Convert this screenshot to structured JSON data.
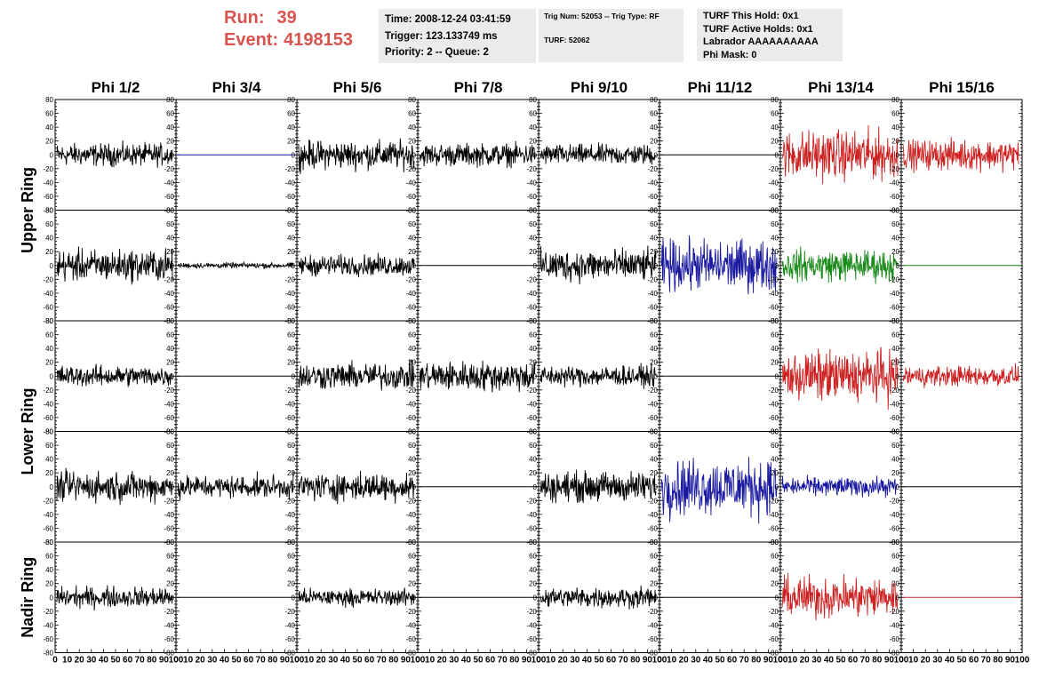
{
  "header": {
    "run_label": "Run:",
    "run_value": "39",
    "event_label": "Event:",
    "event_value": "4198153"
  },
  "info_pane_1": {
    "time": "Time: 2008-12-24 03:41:59",
    "trigger": "Trigger: 123.133749 ms",
    "priority": "Priority: 2 -- Queue: 2"
  },
  "info_pane_2": {
    "trig": "Trig Num: 52053 -- Trig Type: RF",
    "turf": "TURF: 52062"
  },
  "info_pane_3": {
    "this_hold": "TURF This Hold: 0x1",
    "active_holds": "TURF Active Holds: 0x1",
    "labrador": "Labrador AAAAAAAAAA",
    "phi_mask": "Phi Mask: 0"
  },
  "columns": [
    "Phi 1/2",
    "Phi 3/4",
    "Phi 5/6",
    "Phi 7/8",
    "Phi 9/10",
    "Phi 11/12",
    "Phi 13/14",
    "Phi 15/16"
  ],
  "ring_labels": [
    "Upper Ring",
    "Lower Ring",
    "Nadir Ring"
  ],
  "axis": {
    "y_ticks": [
      "80",
      "60",
      "40",
      "20",
      "0",
      "-20",
      "-40",
      "-60",
      "-80"
    ],
    "x_ticks": [
      "0",
      "10",
      "20",
      "30",
      "40",
      "50",
      "60",
      "70",
      "80",
      "90",
      "100"
    ],
    "ylim": [
      -80,
      80
    ],
    "xlim": [
      0,
      100
    ]
  },
  "colors": {
    "black": "#000000",
    "blue": "#1a1aa0",
    "red": "#cc2222",
    "green": "#1a8a1a",
    "header_red": "#d9534f",
    "pane_bg": "#ebebeb"
  },
  "panels": [
    [
      {
        "c": "black",
        "a": 12
      },
      {
        "c": "blue",
        "a": 0
      },
      {
        "c": "black",
        "a": 15
      },
      {
        "c": "black",
        "a": 12
      },
      {
        "c": "black",
        "a": 11
      },
      {
        "c": "black",
        "a": 0
      },
      {
        "c": "red",
        "a": 26
      },
      {
        "c": "red",
        "a": 16
      }
    ],
    [
      {
        "c": "black",
        "a": 17
      },
      {
        "c": "black",
        "a": 3
      },
      {
        "c": "black",
        "a": 11
      },
      {
        "c": "black",
        "a": 0
      },
      {
        "c": "black",
        "a": 17
      },
      {
        "c": "blue",
        "a": 27
      },
      {
        "c": "green",
        "a": 17
      },
      {
        "c": "green",
        "a": 0
      }
    ],
    [
      {
        "c": "black",
        "a": 11
      },
      {
        "c": "black",
        "a": 0
      },
      {
        "c": "black",
        "a": 14
      },
      {
        "c": "black",
        "a": 16
      },
      {
        "c": "black",
        "a": 11
      },
      {
        "c": "black",
        "a": 0
      },
      {
        "c": "red",
        "a": 27
      },
      {
        "c": "red",
        "a": 11
      }
    ],
    [
      {
        "c": "black",
        "a": 16
      },
      {
        "c": "black",
        "a": 12
      },
      {
        "c": "black",
        "a": 15
      },
      {
        "c": "black",
        "a": 0
      },
      {
        "c": "black",
        "a": 16
      },
      {
        "c": "blue",
        "a": 30
      },
      {
        "c": "blue",
        "a": 10
      },
      {
        "c": "black",
        "a": 0
      }
    ],
    [
      {
        "c": "black",
        "a": 11
      },
      {
        "c": "black",
        "a": 0
      },
      {
        "c": "black",
        "a": 9
      },
      {
        "c": "black",
        "a": 0
      },
      {
        "c": "black",
        "a": 11
      },
      {
        "c": "black",
        "a": 0
      },
      {
        "c": "red",
        "a": 22
      },
      {
        "c": "red",
        "a": 0
      }
    ]
  ]
}
